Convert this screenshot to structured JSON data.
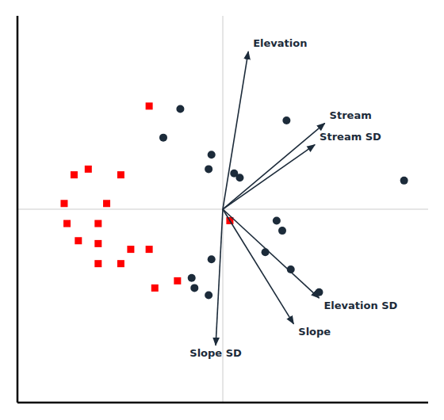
{
  "chart_data": {
    "type": "scatter",
    "xlim": [
      -1.45,
      1.45
    ],
    "ylim": [
      -1.35,
      1.35
    ],
    "tick_labels": false,
    "grid": false,
    "series": [
      {
        "marker": "circle",
        "color": "#1c2b3a",
        "x": [
          -0.3,
          -0.42,
          -0.08,
          -0.1,
          0.08,
          0.12,
          1.28,
          0.45,
          0.38,
          0.42,
          0.3,
          0.48,
          0.68,
          -0.08,
          -0.22,
          -0.2,
          -0.1
        ],
        "values": [
          0.7,
          0.5,
          0.38,
          0.28,
          0.25,
          0.22,
          0.2,
          0.62,
          -0.08,
          -0.15,
          -0.3,
          -0.42,
          -0.58,
          -0.35,
          -0.48,
          -0.55,
          -0.6
        ]
      },
      {
        "marker": "square",
        "color": "#ff0000",
        "x": [
          -0.52,
          -0.95,
          -0.72,
          -1.05,
          -1.12,
          -0.82,
          -1.1,
          -0.88,
          -1.02,
          -0.88,
          -0.88,
          -0.72,
          -0.65,
          -0.52,
          0.05,
          -0.48,
          -0.32
        ],
        "values": [
          0.72,
          0.28,
          0.24,
          0.24,
          0.04,
          0.04,
          -0.1,
          -0.1,
          -0.22,
          -0.24,
          -0.38,
          -0.38,
          -0.28,
          -0.28,
          -0.08,
          -0.55,
          -0.5
        ]
      }
    ],
    "annotations": [
      {
        "x": 0.18,
        "y": 1.1,
        "text": "Elevation",
        "color": "#1c2b3a"
      },
      {
        "x": 0.72,
        "y": 0.6,
        "text": "Stream",
        "color": "#1c2b3a"
      },
      {
        "x": 0.65,
        "y": 0.45,
        "text": "Stream SD",
        "color": "#1c2b3a"
      },
      {
        "x": 0.68,
        "y": -0.62,
        "text": "Elevation SD",
        "color": "#1c2b3a"
      },
      {
        "x": 0.5,
        "y": -0.8,
        "text": "Slope",
        "color": "#1c2b3a"
      },
      {
        "x": -0.05,
        "y": -0.95,
        "text": "Slope SD",
        "color": "#1c2b3a"
      }
    ]
  }
}
